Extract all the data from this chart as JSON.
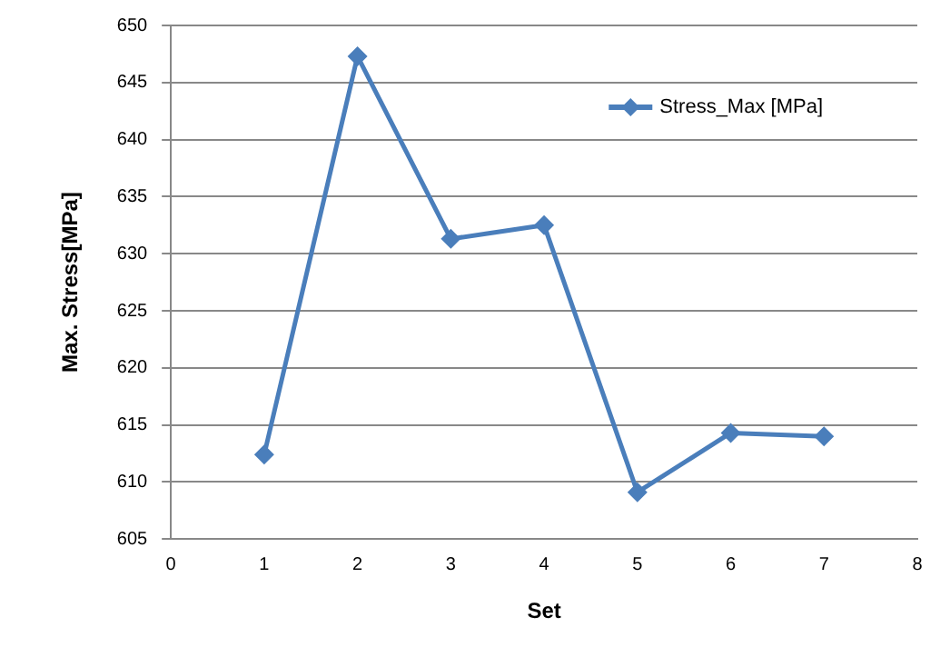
{
  "chart_data": {
    "type": "line",
    "xlabel": "Set",
    "ylabel": "Max. Stress[MPa]",
    "x": [
      1,
      2,
      3,
      4,
      5,
      6,
      7
    ],
    "series": [
      {
        "name": "Stress_Max [MPa]",
        "color": "#4a7ebb",
        "values": [
          612.4,
          647.3,
          631.3,
          632.5,
          609.1,
          614.3,
          614.0
        ]
      }
    ],
    "xlim": [
      0,
      8
    ],
    "xticks": [
      0,
      1,
      2,
      3,
      4,
      5,
      6,
      7,
      8
    ],
    "ylim": [
      605,
      650
    ],
    "yticks": [
      605,
      610,
      615,
      620,
      625,
      630,
      635,
      640,
      645,
      650
    ],
    "grid": "y",
    "legend": "top right",
    "marker": "diamond",
    "line_style": "solid"
  }
}
